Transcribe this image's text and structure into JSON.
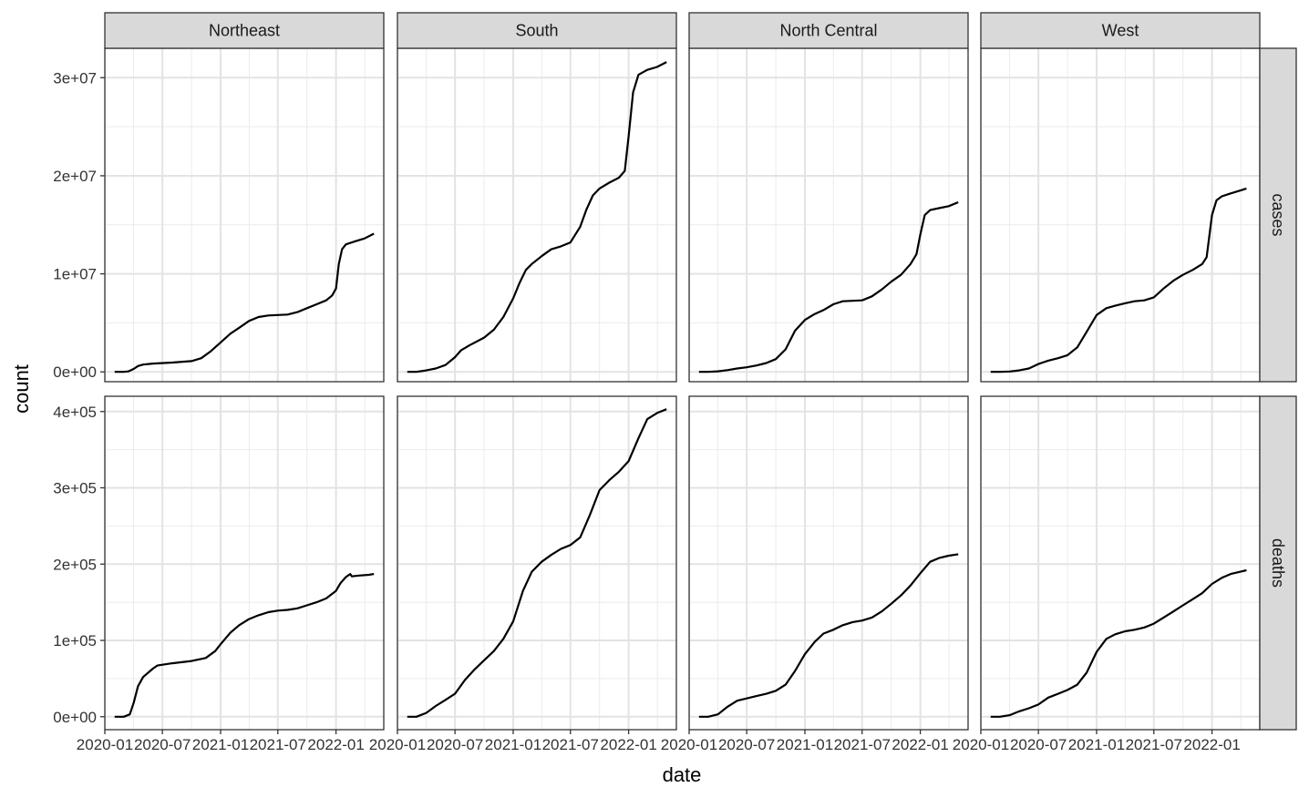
{
  "chart_data": {
    "type": "line",
    "xlabel": "date",
    "ylabel": "count",
    "columns": [
      "Northeast",
      "South",
      "North Central",
      "West"
    ],
    "rows": [
      "cases",
      "deaths"
    ],
    "x_ticks": [
      "2020-01",
      "2020-07",
      "2021-01",
      "2021-07",
      "2022-01"
    ],
    "xlim": [
      "2020-01-01",
      "2022-06-01"
    ],
    "y_ticks": {
      "cases": [
        {
          "value": 0,
          "label": "0e+00"
        },
        {
          "value": 10000000,
          "label": "1e+07"
        },
        {
          "value": 20000000,
          "label": "2e+07"
        },
        {
          "value": 30000000,
          "label": "3e+07"
        }
      ],
      "deaths": [
        {
          "value": 0,
          "label": "0e+00"
        },
        {
          "value": 100000,
          "label": "1e+05"
        },
        {
          "value": 200000,
          "label": "2e+05"
        },
        {
          "value": 300000,
          "label": "3e+05"
        },
        {
          "value": 400000,
          "label": "4e+05"
        }
      ]
    },
    "ylim": {
      "cases": [
        -1000000,
        33000000
      ],
      "deaths": [
        -17000,
        420000
      ]
    },
    "grid": true,
    "line_color": "#000000",
    "series": {
      "cases": {
        "Northeast": [
          [
            "2020-02-01",
            0
          ],
          [
            "2020-03-01",
            0
          ],
          [
            "2020-03-15",
            50000
          ],
          [
            "2020-04-01",
            300000
          ],
          [
            "2020-04-15",
            600000
          ],
          [
            "2020-05-01",
            750000
          ],
          [
            "2020-06-01",
            850000
          ],
          [
            "2020-08-01",
            950000
          ],
          [
            "2020-10-01",
            1100000
          ],
          [
            "2020-11-01",
            1400000
          ],
          [
            "2020-12-01",
            2100000
          ],
          [
            "2021-01-01",
            3000000
          ],
          [
            "2021-02-01",
            3900000
          ],
          [
            "2021-03-01",
            4500000
          ],
          [
            "2021-04-01",
            5200000
          ],
          [
            "2021-05-01",
            5600000
          ],
          [
            "2021-06-01",
            5750000
          ],
          [
            "2021-08-01",
            5850000
          ],
          [
            "2021-09-01",
            6100000
          ],
          [
            "2021-10-01",
            6500000
          ],
          [
            "2021-11-01",
            6900000
          ],
          [
            "2021-12-01",
            7300000
          ],
          [
            "2021-12-20",
            7800000
          ],
          [
            "2022-01-01",
            8500000
          ],
          [
            "2022-01-10",
            11000000
          ],
          [
            "2022-01-20",
            12500000
          ],
          [
            "2022-02-01",
            13000000
          ],
          [
            "2022-03-01",
            13300000
          ],
          [
            "2022-04-01",
            13600000
          ],
          [
            "2022-05-01",
            14100000
          ]
        ],
        "South": [
          [
            "2020-02-01",
            0
          ],
          [
            "2020-03-01",
            0
          ],
          [
            "2020-04-01",
            150000
          ],
          [
            "2020-05-01",
            350000
          ],
          [
            "2020-06-01",
            700000
          ],
          [
            "2020-07-01",
            1500000
          ],
          [
            "2020-07-20",
            2200000
          ],
          [
            "2020-08-15",
            2700000
          ],
          [
            "2020-10-01",
            3500000
          ],
          [
            "2020-11-01",
            4300000
          ],
          [
            "2020-12-01",
            5600000
          ],
          [
            "2021-01-01",
            7500000
          ],
          [
            "2021-01-20",
            9000000
          ],
          [
            "2021-02-10",
            10400000
          ],
          [
            "2021-03-01",
            11000000
          ],
          [
            "2021-04-01",
            11800000
          ],
          [
            "2021-05-01",
            12500000
          ],
          [
            "2021-06-01",
            12800000
          ],
          [
            "2021-07-01",
            13200000
          ],
          [
            "2021-08-01",
            14800000
          ],
          [
            "2021-08-20",
            16500000
          ],
          [
            "2021-09-10",
            18000000
          ],
          [
            "2021-10-01",
            18700000
          ],
          [
            "2021-11-01",
            19300000
          ],
          [
            "2021-12-01",
            19800000
          ],
          [
            "2021-12-20",
            20500000
          ],
          [
            "2022-01-01",
            24000000
          ],
          [
            "2022-01-15",
            28500000
          ],
          [
            "2022-02-01",
            30300000
          ],
          [
            "2022-03-01",
            30800000
          ],
          [
            "2022-04-01",
            31100000
          ],
          [
            "2022-05-01",
            31600000
          ]
        ],
        "North Central": [
          [
            "2020-02-01",
            0
          ],
          [
            "2020-03-01",
            0
          ],
          [
            "2020-04-01",
            60000
          ],
          [
            "2020-05-01",
            180000
          ],
          [
            "2020-06-01",
            350000
          ],
          [
            "2020-07-01",
            470000
          ],
          [
            "2020-08-01",
            650000
          ],
          [
            "2020-09-01",
            900000
          ],
          [
            "2020-10-01",
            1300000
          ],
          [
            "2020-11-01",
            2300000
          ],
          [
            "2020-12-01",
            4200000
          ],
          [
            "2021-01-01",
            5300000
          ],
          [
            "2021-02-01",
            5900000
          ],
          [
            "2021-03-01",
            6300000
          ],
          [
            "2021-04-01",
            6900000
          ],
          [
            "2021-05-01",
            7200000
          ],
          [
            "2021-07-01",
            7300000
          ],
          [
            "2021-08-01",
            7700000
          ],
          [
            "2021-09-01",
            8400000
          ],
          [
            "2021-10-01",
            9200000
          ],
          [
            "2021-11-01",
            9900000
          ],
          [
            "2021-12-01",
            11000000
          ],
          [
            "2021-12-20",
            12000000
          ],
          [
            "2022-01-01",
            14000000
          ],
          [
            "2022-01-15",
            16000000
          ],
          [
            "2022-02-01",
            16500000
          ],
          [
            "2022-03-01",
            16700000
          ],
          [
            "2022-04-01",
            16900000
          ],
          [
            "2022-05-01",
            17300000
          ]
        ],
        "West": [
          [
            "2020-02-01",
            0
          ],
          [
            "2020-03-01",
            0
          ],
          [
            "2020-04-01",
            40000
          ],
          [
            "2020-05-01",
            150000
          ],
          [
            "2020-06-01",
            350000
          ],
          [
            "2020-07-01",
            800000
          ],
          [
            "2020-08-01",
            1150000
          ],
          [
            "2020-09-01",
            1400000
          ],
          [
            "2020-10-01",
            1700000
          ],
          [
            "2020-11-01",
            2500000
          ],
          [
            "2020-12-01",
            4100000
          ],
          [
            "2021-01-01",
            5800000
          ],
          [
            "2021-02-01",
            6500000
          ],
          [
            "2021-03-01",
            6750000
          ],
          [
            "2021-04-01",
            7000000
          ],
          [
            "2021-05-01",
            7200000
          ],
          [
            "2021-06-01",
            7300000
          ],
          [
            "2021-07-01",
            7600000
          ],
          [
            "2021-08-01",
            8500000
          ],
          [
            "2021-09-01",
            9300000
          ],
          [
            "2021-10-01",
            9900000
          ],
          [
            "2021-11-01",
            10400000
          ],
          [
            "2021-12-01",
            11000000
          ],
          [
            "2021-12-15",
            11700000
          ],
          [
            "2022-01-01",
            16000000
          ],
          [
            "2022-01-15",
            17500000
          ],
          [
            "2022-02-01",
            17900000
          ],
          [
            "2022-03-01",
            18200000
          ],
          [
            "2022-04-01",
            18500000
          ],
          [
            "2022-04-20",
            18700000
          ]
        ]
      },
      "deaths": {
        "Northeast": [
          [
            "2020-02-01",
            0
          ],
          [
            "2020-03-01",
            0
          ],
          [
            "2020-03-20",
            3000
          ],
          [
            "2020-04-01",
            18000
          ],
          [
            "2020-04-15",
            40000
          ],
          [
            "2020-05-01",
            52000
          ],
          [
            "2020-06-01",
            63000
          ],
          [
            "2020-06-15",
            67000
          ],
          [
            "2020-08-01",
            70000
          ],
          [
            "2020-10-01",
            73000
          ],
          [
            "2020-11-15",
            77000
          ],
          [
            "2020-12-15",
            86000
          ],
          [
            "2021-01-01",
            95000
          ],
          [
            "2021-02-01",
            110000
          ],
          [
            "2021-03-01",
            120000
          ],
          [
            "2021-04-01",
            128000
          ],
          [
            "2021-05-01",
            133000
          ],
          [
            "2021-06-01",
            137000
          ],
          [
            "2021-07-01",
            139000
          ],
          [
            "2021-08-01",
            140000
          ],
          [
            "2021-09-01",
            142000
          ],
          [
            "2021-10-01",
            146000
          ],
          [
            "2021-11-01",
            150000
          ],
          [
            "2021-12-01",
            155000
          ],
          [
            "2022-01-01",
            165000
          ],
          [
            "2022-01-15",
            175000
          ],
          [
            "2022-02-01",
            183000
          ],
          [
            "2022-02-15",
            187000
          ],
          [
            "2022-02-20",
            184000
          ],
          [
            "2022-03-15",
            185000
          ],
          [
            "2022-04-15",
            186000
          ],
          [
            "2022-05-01",
            187000
          ]
        ],
        "South": [
          [
            "2020-02-01",
            0
          ],
          [
            "2020-03-01",
            0
          ],
          [
            "2020-04-01",
            5000
          ],
          [
            "2020-05-01",
            14000
          ],
          [
            "2020-06-01",
            22000
          ],
          [
            "2020-07-01",
            30000
          ],
          [
            "2020-08-01",
            48000
          ],
          [
            "2020-09-01",
            62000
          ],
          [
            "2020-10-01",
            74000
          ],
          [
            "2020-11-01",
            86000
          ],
          [
            "2020-12-01",
            102000
          ],
          [
            "2021-01-01",
            125000
          ],
          [
            "2021-02-01",
            165000
          ],
          [
            "2021-03-01",
            190000
          ],
          [
            "2021-04-01",
            203000
          ],
          [
            "2021-05-01",
            212000
          ],
          [
            "2021-06-01",
            220000
          ],
          [
            "2021-07-01",
            225000
          ],
          [
            "2021-08-01",
            235000
          ],
          [
            "2021-09-01",
            265000
          ],
          [
            "2021-10-01",
            297000
          ],
          [
            "2021-11-01",
            310000
          ],
          [
            "2021-12-01",
            321000
          ],
          [
            "2022-01-01",
            335000
          ],
          [
            "2022-02-01",
            365000
          ],
          [
            "2022-03-01",
            390000
          ],
          [
            "2022-04-01",
            398000
          ],
          [
            "2022-05-01",
            403000
          ]
        ],
        "North Central": [
          [
            "2020-02-01",
            0
          ],
          [
            "2020-03-01",
            0
          ],
          [
            "2020-04-01",
            3000
          ],
          [
            "2020-05-01",
            13000
          ],
          [
            "2020-06-01",
            21000
          ],
          [
            "2020-07-01",
            24000
          ],
          [
            "2020-08-01",
            27000
          ],
          [
            "2020-09-01",
            30000
          ],
          [
            "2020-10-01",
            34000
          ],
          [
            "2020-11-01",
            42000
          ],
          [
            "2020-12-01",
            60000
          ],
          [
            "2021-01-01",
            82000
          ],
          [
            "2021-02-01",
            98000
          ],
          [
            "2021-03-01",
            109000
          ],
          [
            "2021-04-01",
            114000
          ],
          [
            "2021-05-01",
            120000
          ],
          [
            "2021-06-01",
            124000
          ],
          [
            "2021-07-01",
            126000
          ],
          [
            "2021-08-01",
            130000
          ],
          [
            "2021-09-01",
            138000
          ],
          [
            "2021-10-01",
            148000
          ],
          [
            "2021-11-01",
            159000
          ],
          [
            "2021-12-01",
            172000
          ],
          [
            "2022-01-01",
            188000
          ],
          [
            "2022-02-01",
            203000
          ],
          [
            "2022-03-01",
            208000
          ],
          [
            "2022-04-01",
            211000
          ],
          [
            "2022-05-01",
            213000
          ]
        ],
        "West": [
          [
            "2020-02-01",
            0
          ],
          [
            "2020-03-01",
            0
          ],
          [
            "2020-04-01",
            2000
          ],
          [
            "2020-05-01",
            7000
          ],
          [
            "2020-06-01",
            11000
          ],
          [
            "2020-07-01",
            16000
          ],
          [
            "2020-08-01",
            25000
          ],
          [
            "2020-09-01",
            30000
          ],
          [
            "2020-10-01",
            35000
          ],
          [
            "2020-11-01",
            42000
          ],
          [
            "2020-12-01",
            58000
          ],
          [
            "2021-01-01",
            85000
          ],
          [
            "2021-02-01",
            102000
          ],
          [
            "2021-03-01",
            108000
          ],
          [
            "2021-04-01",
            112000
          ],
          [
            "2021-05-01",
            114000
          ],
          [
            "2021-06-01",
            117000
          ],
          [
            "2021-07-01",
            122000
          ],
          [
            "2021-08-01",
            130000
          ],
          [
            "2021-09-01",
            138000
          ],
          [
            "2021-10-01",
            146000
          ],
          [
            "2021-11-01",
            154000
          ],
          [
            "2021-12-01",
            162000
          ],
          [
            "2022-01-01",
            174000
          ],
          [
            "2022-02-01",
            182000
          ],
          [
            "2022-03-01",
            187000
          ],
          [
            "2022-04-01",
            190000
          ],
          [
            "2022-04-20",
            192000
          ]
        ]
      }
    }
  }
}
